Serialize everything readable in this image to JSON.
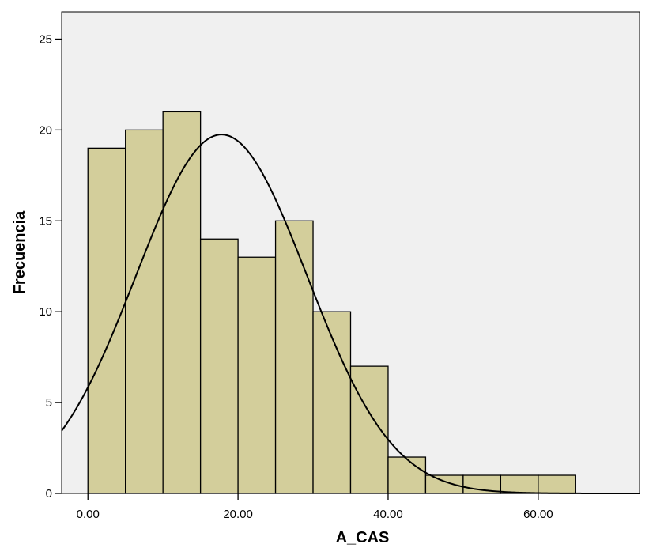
{
  "chart_data": {
    "type": "bar",
    "subtype": "histogram",
    "xlabel": "A_CAS",
    "ylabel": "Frecuencia",
    "bin_width": 5,
    "bins": [
      {
        "start": 0,
        "end": 5,
        "count": 19
      },
      {
        "start": 5,
        "end": 10,
        "count": 20
      },
      {
        "start": 10,
        "end": 15,
        "count": 21
      },
      {
        "start": 15,
        "end": 20,
        "count": 14
      },
      {
        "start": 20,
        "end": 25,
        "count": 13
      },
      {
        "start": 25,
        "end": 30,
        "count": 15
      },
      {
        "start": 30,
        "end": 35,
        "count": 10
      },
      {
        "start": 35,
        "end": 40,
        "count": 7
      },
      {
        "start": 40,
        "end": 45,
        "count": 2
      },
      {
        "start": 45,
        "end": 50,
        "count": 1
      },
      {
        "start": 50,
        "end": 55,
        "count": 1
      },
      {
        "start": 55,
        "end": 60,
        "count": 1
      },
      {
        "start": 60,
        "end": 65,
        "count": 1
      }
    ],
    "xlim": [
      -3.5,
      73.5
    ],
    "ylim": [
      0,
      26.5
    ],
    "x_ticks": [
      0,
      20,
      40,
      60
    ],
    "x_tick_labels": [
      "0.00",
      "20.00",
      "40.00",
      "60.00"
    ],
    "y_ticks": [
      0,
      5,
      10,
      15,
      20,
      25
    ],
    "y_tick_labels": [
      "0",
      "5",
      "10",
      "15",
      "20",
      "25"
    ],
    "normal_curve": {
      "mean": 17.8,
      "sd": 11.4,
      "peak": 19.75
    },
    "grid": false,
    "legend": "none",
    "colors": {
      "plot_background": "#f0f0f0",
      "bar_fill": "#d3ce9b",
      "bar_stroke": "#000000",
      "curve": "#000000"
    }
  }
}
